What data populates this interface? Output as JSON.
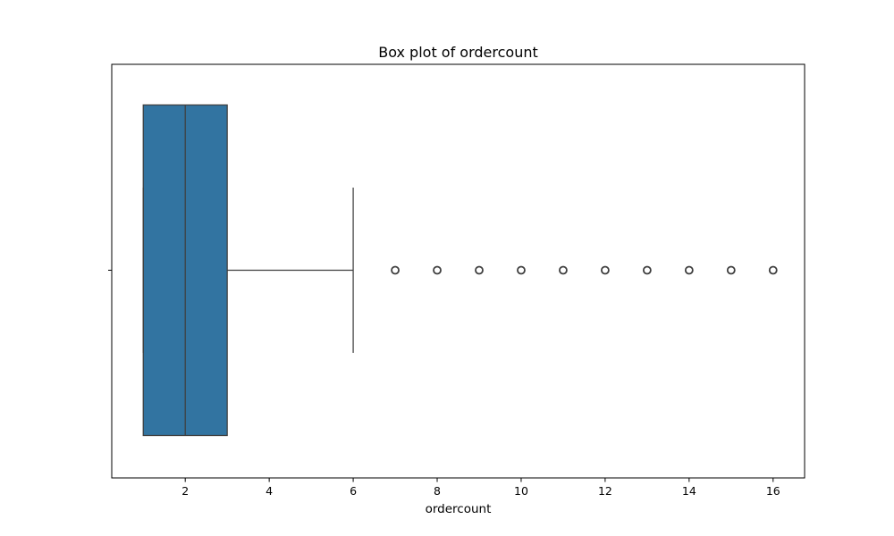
{
  "chart_data": {
    "type": "box",
    "title": "Box plot of ordercount",
    "xlabel": "ordercount",
    "ylabel": "",
    "orientation": "horizontal",
    "xlim": [
      0.25,
      16.75
    ],
    "xticks": [
      2,
      4,
      6,
      8,
      10,
      12,
      14,
      16
    ],
    "xtick_labels": [
      "2",
      "4",
      "6",
      "8",
      "10",
      "12",
      "14",
      "16"
    ],
    "grid": false,
    "box": {
      "whisker_low": 1,
      "q1": 1,
      "median": 2,
      "q3": 3,
      "whisker_high": 6,
      "outliers": [
        7,
        8,
        9,
        10,
        11,
        12,
        13,
        14,
        15,
        16
      ]
    },
    "colors": {
      "box_fill": "#3274a1",
      "line": "#3f3f3f",
      "axes": "#000000"
    }
  }
}
